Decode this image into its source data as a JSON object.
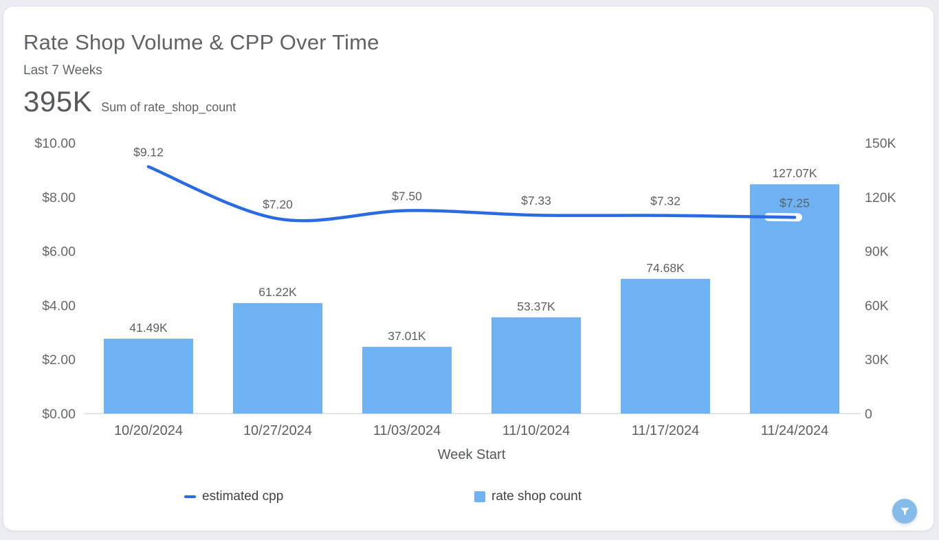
{
  "header": {
    "title": "Rate Shop Volume & CPP Over Time",
    "subtitle": "Last 7 Weeks",
    "kpi_value": "395K",
    "kpi_caption": "Sum of rate_shop_count"
  },
  "legend": [
    {
      "label": "estimated cpp",
      "type": "line",
      "color": "#2b6be2"
    },
    {
      "label": "rate shop count",
      "type": "bar",
      "color": "#6fb2f4"
    }
  ],
  "filter_button": {
    "icon": "funnel-icon",
    "color": "#85bbe8"
  },
  "chart_data": {
    "type": "combo",
    "x": [
      "10/20/2024",
      "10/27/2024",
      "11/03/2024",
      "11/10/2024",
      "11/17/2024",
      "11/24/2024"
    ],
    "xlabel": "Week Start",
    "series": [
      {
        "name": "estimated cpp",
        "type": "line",
        "axis": "left",
        "values": [
          9.12,
          7.2,
          7.5,
          7.33,
          7.32,
          7.25
        ],
        "labels": [
          "$9.12",
          "$7.20",
          "$7.50",
          "$7.33",
          "$7.32",
          "$7.25"
        ],
        "color": "#2b6be2"
      },
      {
        "name": "rate shop count",
        "type": "bar",
        "axis": "right",
        "values": [
          41490,
          61220,
          37010,
          53370,
          74680,
          127070
        ],
        "labels": [
          "41.49K",
          "61.22K",
          "37.01K",
          "53.37K",
          "74.68K",
          "127.07K"
        ],
        "color": "#6fb2f4"
      }
    ],
    "left_axis": {
      "ticks": [
        "$0.00",
        "$2.00",
        "$4.00",
        "$6.00",
        "$8.00",
        "$10.00"
      ],
      "values": [
        0,
        2,
        4,
        6,
        8,
        10
      ],
      "range": [
        0,
        10
      ]
    },
    "right_axis": {
      "ticks": [
        "0",
        "30K",
        "60K",
        "90K",
        "120K",
        "150K"
      ],
      "values": [
        0,
        30000,
        60000,
        90000,
        120000,
        150000
      ],
      "range": [
        0,
        150000
      ]
    },
    "grid": "none",
    "style": {
      "axis_line": "#e2e4e7",
      "highlight_halo": "rgba(255,255,255,0.92)"
    }
  }
}
